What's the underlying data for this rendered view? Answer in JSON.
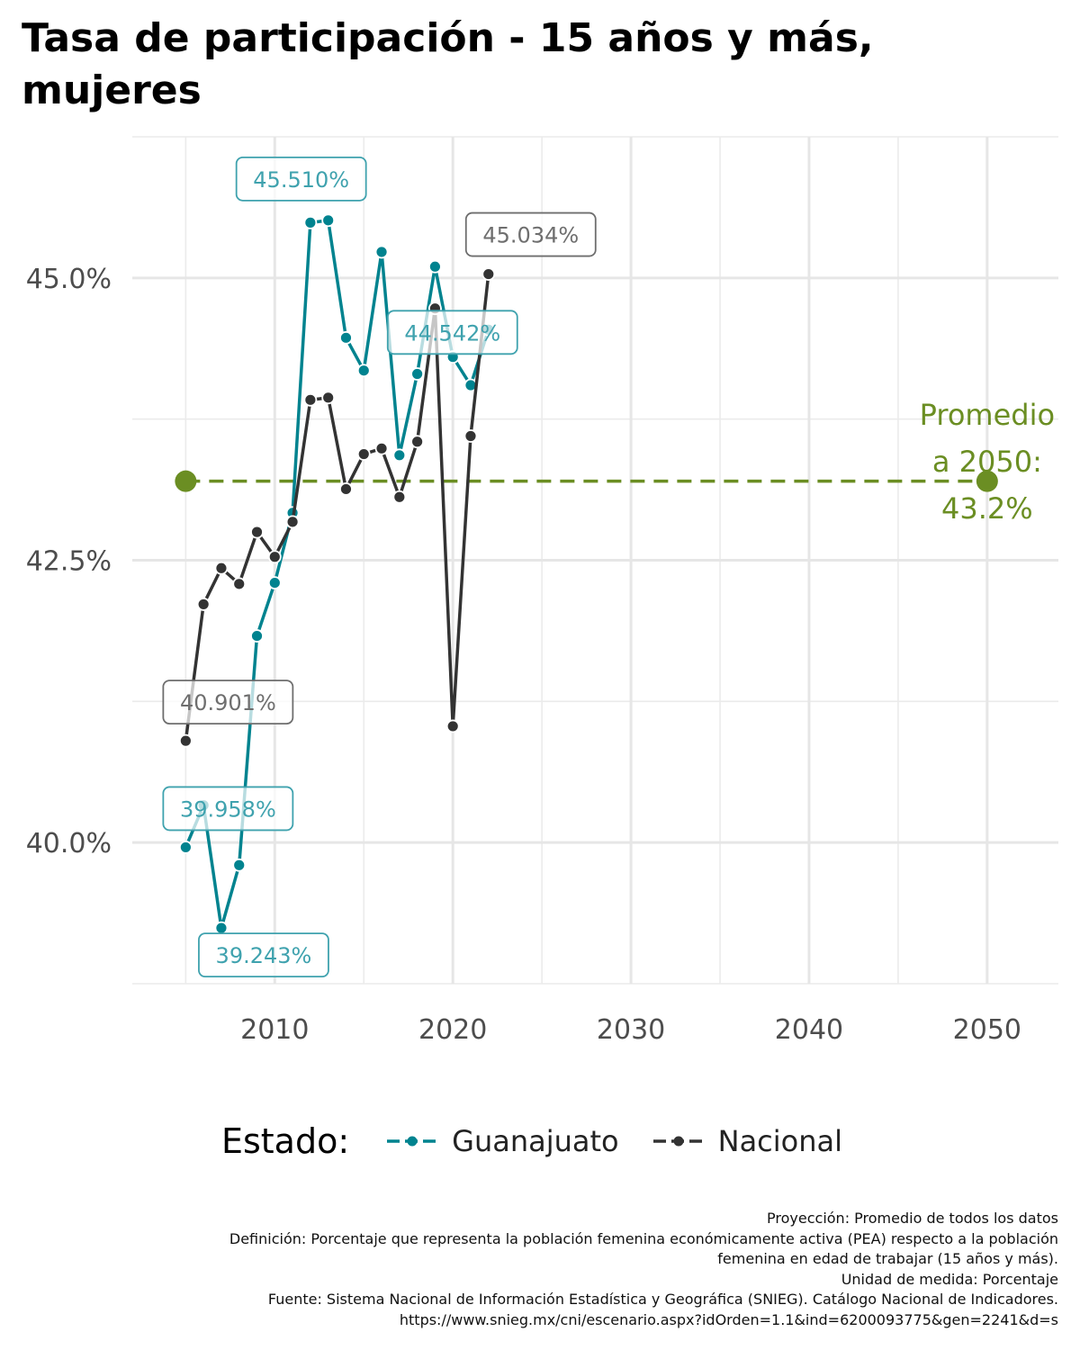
{
  "title": "Tasa de participación - 15 años y más, mujeres",
  "chart_data": {
    "type": "line",
    "title": "Tasa de participación - 15 años y más, mujeres",
    "xlabel": "",
    "ylabel": "",
    "xlim": [
      2002,
      2054
    ],
    "ylim": [
      38.75,
      46.25
    ],
    "x_ticks": [
      2010,
      2020,
      2030,
      2040,
      2050
    ],
    "x_tick_labels": [
      "2010",
      "2020",
      "2030",
      "2040",
      "2050"
    ],
    "y_ticks": [
      40.0,
      42.5,
      45.0
    ],
    "y_tick_labels": [
      "40.0%",
      "42.5%",
      "45.0%"
    ],
    "grid": true,
    "legend_position": "bottom",
    "series": [
      {
        "name": "Guanajuato",
        "color": "#00838F",
        "x": [
          2005,
          2006,
          2007,
          2008,
          2009,
          2010,
          2011,
          2012,
          2013,
          2014,
          2015,
          2016,
          2017,
          2018,
          2019,
          2020,
          2021,
          2022
        ],
        "y": [
          39.958,
          40.33,
          39.243,
          39.8,
          41.83,
          42.3,
          42.92,
          45.49,
          45.51,
          44.47,
          44.18,
          45.23,
          43.43,
          44.15,
          45.1,
          44.3,
          44.05,
          44.542
        ]
      },
      {
        "name": "Nacional",
        "color": "#333333",
        "x": [
          2005,
          2006,
          2007,
          2008,
          2009,
          2010,
          2011,
          2012,
          2013,
          2014,
          2015,
          2016,
          2017,
          2018,
          2019,
          2020,
          2021,
          2022
        ],
        "y": [
          40.901,
          42.11,
          42.43,
          42.29,
          42.75,
          42.53,
          42.84,
          43.92,
          43.94,
          43.13,
          43.44,
          43.49,
          43.06,
          43.55,
          44.73,
          41.03,
          43.6,
          45.034
        ]
      }
    ],
    "labels": [
      {
        "text": "45.510%",
        "series": "Guanajuato",
        "x": 2013,
        "y": 45.51
      },
      {
        "text": "44.542%",
        "series": "Guanajuato",
        "x": 2022,
        "y": 44.542
      },
      {
        "text": "39.958%",
        "series": "Guanajuato",
        "x": 2005,
        "y": 39.958
      },
      {
        "text": "39.243%",
        "series": "Guanajuato",
        "x": 2007,
        "y": 39.243
      },
      {
        "text": "45.034%",
        "series": "Nacional",
        "x": 2022,
        "y": 45.034
      },
      {
        "text": "40.901%",
        "series": "Nacional",
        "x": 2005,
        "y": 40.901
      }
    ],
    "projection": {
      "x": [
        2005,
        2050
      ],
      "y": 43.2,
      "color": "#6B8E23",
      "label_lines": [
        "Promedio",
        "a 2050:",
        "43.2%"
      ]
    }
  },
  "legend": {
    "title": "Estado:",
    "items": [
      {
        "label": "Guanajuato",
        "color": "#00838F"
      },
      {
        "label": "Nacional",
        "color": "#333333"
      }
    ]
  },
  "caption": {
    "lines": [
      "Proyección: Promedio de todos los datos",
      "Definición: Porcentaje que representa la población femenina económicamente activa (PEA) respecto a la población",
      "femenina en edad de trabajar (15 años y más).",
      "Unidad de medida: Porcentaje",
      "Fuente: Sistema Nacional de Información Estadística y Geográfica (SNIEG). Catálogo Nacional de Indicadores.",
      "https://www.snieg.mx/cni/escenario.aspx?idOrden=1.1&ind=6200093775&gen=2241&d=s"
    ]
  }
}
